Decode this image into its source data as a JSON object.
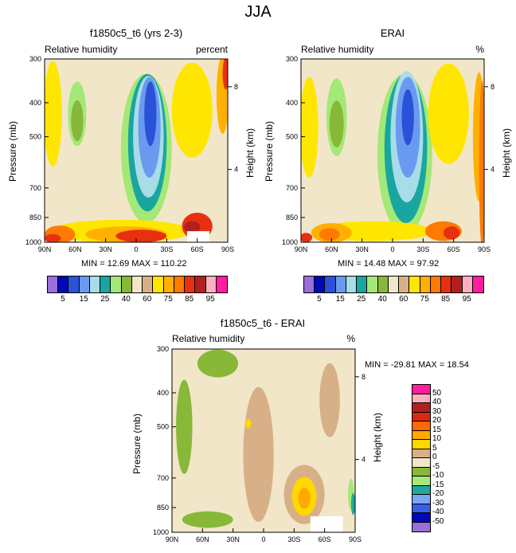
{
  "title": "JJA",
  "colors": {
    "rh_levels": [
      "#9a6fd8",
      "#0008b8",
      "#2a52d8",
      "#6a9af0",
      "#a8dce8",
      "#1aa6a0",
      "#a4e878",
      "#88b838",
      "#f2e6c8",
      "#d8b088",
      "#ffe600",
      "#ffb000",
      "#ff7a00",
      "#e83010",
      "#b02020",
      "#ffb0c0",
      "#ff1ea0"
    ],
    "diff_levels": [
      "#9a6fd8",
      "#0008b8",
      "#3a5ee8",
      "#7aa8f0",
      "#20a8a0",
      "#a8e878",
      "#88b838",
      "#f2e6c8",
      "#d8b088",
      "#ffd800",
      "#ffa800",
      "#ff6a00",
      "#d82a10",
      "#b02020",
      "#ffb0c0",
      "#ff1ea0"
    ]
  },
  "chart_data": [
    {
      "type": "heatmap",
      "title": "f1850c5_t6 (yrs 2-3)",
      "left_title": "Relative humidity",
      "right_title": "percent",
      "ylabel": "Pressure (mb)",
      "ylabel_right": "Height (km)",
      "x_ticks": [
        "90N",
        "60N",
        "30N",
        "0",
        "30S",
        "60S",
        "90S"
      ],
      "y_ticks": [
        "300",
        "400",
        "500",
        "700",
        "850",
        "1000"
      ],
      "y_right_ticks": [
        "8",
        "4"
      ],
      "ylim": [
        1000,
        300
      ],
      "min_label": "MIN =  12.69   MAX = 110.22",
      "colorbar_labels": [
        "5",
        "15",
        "25",
        "40",
        "60",
        "75",
        "85",
        "95"
      ],
      "fields": [
        {
          "level": 10,
          "x": -82,
          "p": 430,
          "rx": 9,
          "rp": 170
        },
        {
          "level": 6,
          "x": -58,
          "p": 430,
          "rx": 9,
          "rp": 90
        },
        {
          "level": 7,
          "x": -58,
          "p": 450,
          "rx": 6,
          "rp": 60
        },
        {
          "level": 6,
          "x": 10,
          "p": 540,
          "rx": 25,
          "rp": 260
        },
        {
          "level": 5,
          "x": 11,
          "p": 520,
          "rx": 19,
          "rp": 220
        },
        {
          "level": 4,
          "x": 12,
          "p": 500,
          "rx": 15,
          "rp": 190
        },
        {
          "level": 3,
          "x": 13,
          "p": 470,
          "rx": 11,
          "rp": 150
        },
        {
          "level": 2,
          "x": 14,
          "p": 430,
          "rx": 6,
          "rp": 90
        },
        {
          "level": 10,
          "x": 55,
          "p": 420,
          "rx": 20,
          "rp": 140
        },
        {
          "level": 11,
          "x": 85,
          "p": 380,
          "rx": 6,
          "rp": 120
        },
        {
          "level": 13,
          "x": 88,
          "p": 330,
          "rx": 3,
          "rp": 40
        },
        {
          "level": 10,
          "x": -15,
          "p": 930,
          "rx": 70,
          "rp": 70
        },
        {
          "level": 11,
          "x": -10,
          "p": 950,
          "rx": 40,
          "rp": 50
        },
        {
          "level": 12,
          "x": -75,
          "p": 950,
          "rx": 15,
          "rp": 60
        },
        {
          "level": 13,
          "x": -82,
          "p": 975,
          "rx": 8,
          "rp": 30
        },
        {
          "level": 13,
          "x": 60,
          "p": 900,
          "rx": 15,
          "rp": 80
        },
        {
          "level": 14,
          "x": 55,
          "p": 905,
          "rx": 8,
          "rp": 35
        },
        {
          "level": 13,
          "x": 5,
          "p": 960,
          "rx": 25,
          "rp": 40
        }
      ],
      "missing_box": {
        "x0": 50,
        "x1": 72,
        "p0": 930,
        "p1": 1000
      }
    },
    {
      "type": "heatmap",
      "title": "ERAI",
      "left_title": "Relative humidity",
      "right_title": "%",
      "ylabel": "Pressure (mb)",
      "ylabel_right": "Height (km)",
      "x_ticks": [
        "90N",
        "60N",
        "30N",
        "0",
        "30S",
        "60S",
        "90S"
      ],
      "y_ticks": [
        "300",
        "400",
        "500",
        "700",
        "850",
        "1000"
      ],
      "y_right_ticks": [
        "8",
        "4"
      ],
      "ylim": [
        1000,
        300
      ],
      "min_label": "MIN =  14.48   MAX =  97.92",
      "colorbar_labels": [
        "5",
        "15",
        "25",
        "40",
        "60",
        "75",
        "85",
        "95"
      ],
      "fields": [
        {
          "level": 10,
          "x": -82,
          "p": 470,
          "rx": 9,
          "rp": 150
        },
        {
          "level": 6,
          "x": -55,
          "p": 440,
          "rx": 10,
          "rp": 110
        },
        {
          "level": 7,
          "x": -55,
          "p": 460,
          "rx": 7,
          "rp": 70
        },
        {
          "level": 6,
          "x": 12,
          "p": 560,
          "rx": 27,
          "rp": 300
        },
        {
          "level": 5,
          "x": 13,
          "p": 540,
          "rx": 21,
          "rp": 260
        },
        {
          "level": 4,
          "x": 14,
          "p": 500,
          "rx": 16,
          "rp": 210
        },
        {
          "level": 3,
          "x": 15,
          "p": 470,
          "rx": 12,
          "rp": 150
        },
        {
          "level": 2,
          "x": 15,
          "p": 440,
          "rx": 6,
          "rp": 80
        },
        {
          "level": 10,
          "x": 55,
          "p": 430,
          "rx": 20,
          "rp": 150
        },
        {
          "level": 11,
          "x": 85,
          "p": 500,
          "rx": 6,
          "rp": 200
        },
        {
          "level": 12,
          "x": 88,
          "p": 600,
          "rx": 3,
          "rp": 300
        },
        {
          "level": 10,
          "x": -20,
          "p": 930,
          "rx": 60,
          "rp": 60
        },
        {
          "level": 11,
          "x": -60,
          "p": 940,
          "rx": 20,
          "rp": 60
        },
        {
          "level": 12,
          "x": -62,
          "p": 950,
          "rx": 10,
          "rp": 40
        },
        {
          "level": 13,
          "x": -85,
          "p": 970,
          "rx": 6,
          "rp": 30
        },
        {
          "level": 12,
          "x": 50,
          "p": 930,
          "rx": 18,
          "rp": 60
        },
        {
          "level": 13,
          "x": 58,
          "p": 940,
          "rx": 8,
          "rp": 40
        }
      ]
    },
    {
      "type": "heatmap",
      "title": "f1850c5_t6 - ERAI",
      "left_title": "Relative humidity",
      "right_title": "%",
      "ylabel": "Pressure (mb)",
      "ylabel_right": "Height (km)",
      "x_ticks": [
        "90N",
        "60N",
        "30N",
        "0",
        "30S",
        "60S",
        "90S"
      ],
      "y_ticks": [
        "300",
        "400",
        "500",
        "700",
        "850",
        "1000"
      ],
      "y_right_ticks": [
        "8",
        "4"
      ],
      "ylim": [
        1000,
        300
      ],
      "min_label": "MIN = -29.81   MAX =  18.54",
      "colorbar_labels": [
        "50",
        "40",
        "30",
        "20",
        "15",
        "10",
        "5",
        "0",
        "-5",
        "-10",
        "-15",
        "-20",
        "-30",
        "-40",
        "-50"
      ],
      "fields": [
        {
          "level": 8,
          "x": -5,
          "p": 600,
          "rx": 15,
          "rp": 250
        },
        {
          "level": 6,
          "x": -78,
          "p": 500,
          "rx": 8,
          "rp": 150
        },
        {
          "level": 6,
          "x": -55,
          "p": 920,
          "rx": 25,
          "rp": 50
        },
        {
          "level": 6,
          "x": -45,
          "p": 330,
          "rx": 20,
          "rp": 30
        },
        {
          "level": 8,
          "x": 40,
          "p": 780,
          "rx": 20,
          "rp": 150
        },
        {
          "level": 9,
          "x": 40,
          "p": 790,
          "rx": 12,
          "rp": 100
        },
        {
          "level": 10,
          "x": 40,
          "p": 800,
          "rx": 6,
          "rp": 55
        },
        {
          "level": 9,
          "x": -15,
          "p": 490,
          "rx": 3,
          "rp": 15
        },
        {
          "level": 5,
          "x": 86,
          "p": 780,
          "rx": 3,
          "rp": 80
        },
        {
          "level": 4,
          "x": 88,
          "p": 830,
          "rx": 2,
          "rp": 60
        },
        {
          "level": 8,
          "x": 65,
          "p": 420,
          "rx": 10,
          "rp": 100
        }
      ],
      "missing_box": {
        "x0": 46,
        "x1": 78,
        "p0": 900,
        "p1": 1000
      }
    }
  ]
}
